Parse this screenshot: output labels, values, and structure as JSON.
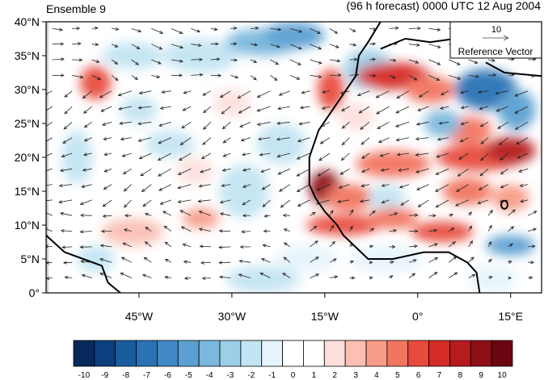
{
  "title_left": "Ensemble 9",
  "title_right": "(96 h forecast) 0000 UTC 12 Aug 2004",
  "lat_ticks": [
    "40°N",
    "35°N",
    "30°N",
    "25°N",
    "20°N",
    "15°N",
    "10°N",
    "5°N",
    "0°"
  ],
  "lon_ticks": [
    "45°W",
    "30°W",
    "15°W",
    "0°",
    "15°E"
  ],
  "reference_vector": {
    "magnitude": "10",
    "label": "Reference Vector"
  },
  "colorbar": {
    "labels": [
      "-10",
      "-9",
      "-8",
      "-7",
      "-6",
      "-5",
      "-4",
      "-3",
      "-2",
      "-1",
      "0",
      "1",
      "2",
      "3",
      "4",
      "5",
      "6",
      "7",
      "8",
      "9",
      "10"
    ],
    "colors": [
      "#08285c",
      "#0b3f7d",
      "#1a5c9e",
      "#2a72b5",
      "#3f88c4",
      "#5ba0d1",
      "#7ab8dd",
      "#9dcfe7",
      "#c3e4f2",
      "#e6f4fb",
      "#ffffff",
      "#ffffff",
      "#fde0dc",
      "#fbbfb3",
      "#f89b88",
      "#f27560",
      "#e84b3c",
      "#d42b26",
      "#b51b1f",
      "#8f0f17",
      "#6b0510"
    ]
  },
  "map_extent": {
    "lon": [
      -60,
      20
    ],
    "lat": [
      0,
      40
    ]
  }
}
